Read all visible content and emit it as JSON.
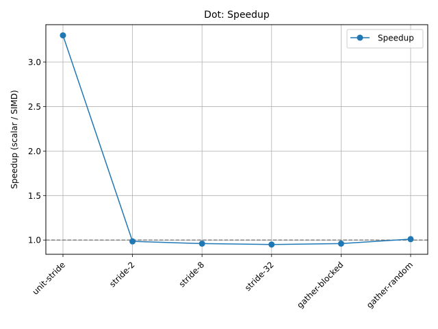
{
  "chart_data": {
    "type": "line",
    "title": "Dot: Speedup",
    "xlabel": "",
    "ylabel": "Speedup (scalar / SIMD)",
    "categories": [
      "unit-stride",
      "stride-2",
      "stride-8",
      "stride-32",
      "gather-blocked",
      "gather-random"
    ],
    "series": [
      {
        "name": "Speedup",
        "values": [
          3.3,
          0.985,
          0.96,
          0.95,
          0.96,
          1.01
        ],
        "color": "#1f77b4"
      }
    ],
    "reference_line": {
      "y": 1.0,
      "style": "dashed",
      "color": "#808080"
    },
    "ylim": [
      0.84,
      3.42
    ],
    "yticks": [
      1.0,
      1.5,
      2.0,
      2.5,
      3.0
    ],
    "ytick_labels": [
      "1.0",
      "1.5",
      "2.0",
      "2.5",
      "3.0"
    ],
    "grid": true,
    "legend_position": "top-right",
    "xtick_rotation": 45
  }
}
